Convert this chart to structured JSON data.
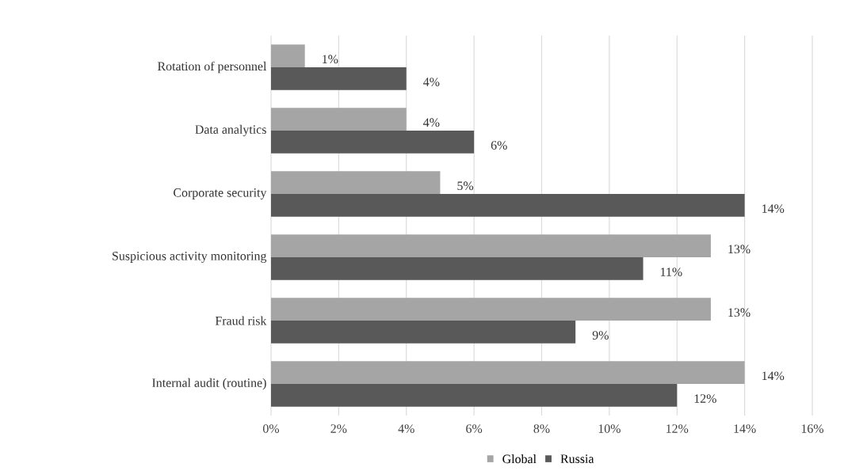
{
  "chart_data": {
    "type": "bar",
    "orientation": "horizontal",
    "categories": [
      "Rotation of personnel",
      "Data analytics",
      "Corporate security",
      "Suspicious activity monitoring",
      "Fraud risk",
      "Internal audit (routine)"
    ],
    "series": [
      {
        "name": "Global",
        "color": "#a5a5a5",
        "values": [
          1,
          4,
          5,
          13,
          13,
          14
        ],
        "value_labels": [
          "1%",
          "4%",
          "5%",
          "13%",
          "13%",
          "14%"
        ]
      },
      {
        "name": "Russia",
        "color": "#595959",
        "values": [
          4,
          6,
          14,
          11,
          9,
          12
        ],
        "value_labels": [
          "4%",
          "6%",
          "14%",
          "11%",
          "9%",
          "12%"
        ]
      }
    ],
    "xlim": [
      0,
      16
    ],
    "xticks": [
      {
        "value": 0,
        "label": "0%"
      },
      {
        "value": 2,
        "label": "2%"
      },
      {
        "value": 4,
        "label": "4%"
      },
      {
        "value": 6,
        "label": "6%"
      },
      {
        "value": 8,
        "label": "8%"
      },
      {
        "value": 10,
        "label": "10%"
      },
      {
        "value": 12,
        "label": "12%"
      },
      {
        "value": 14,
        "label": "14%"
      },
      {
        "value": 16,
        "label": "16%"
      }
    ],
    "grid": "x",
    "legend": "bottom"
  }
}
